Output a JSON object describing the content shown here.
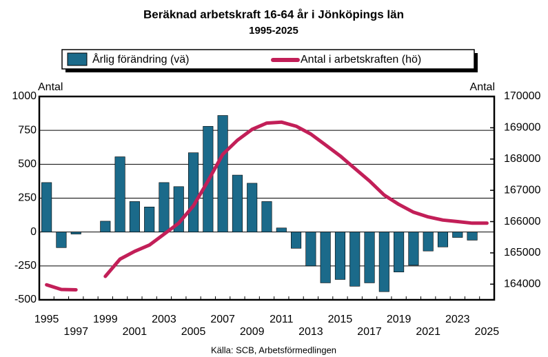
{
  "chart_data": {
    "type": "bar_line",
    "title": "Beräknad arbetskraft 16-64 år i Jönköpings län",
    "subtitle": "1995-2025",
    "y_label": "Antal",
    "y2_label": "Antal",
    "source": "Källa: SCB, Arbetsförmedlingen",
    "legend": "top",
    "categories": [
      "1995",
      null,
      "1997",
      null,
      "1999",
      null,
      "2001",
      null,
      "2003",
      null,
      "2005",
      null,
      "2007",
      null,
      "2009",
      null,
      "2011",
      null,
      "2013",
      null,
      "2015",
      null,
      "2017",
      null,
      "2019",
      null,
      "2021",
      null,
      "2023",
      null,
      "2025"
    ],
    "series": [
      {
        "name": "Årlig förändring (vä)",
        "type": "bar",
        "color": "#1b6a8a",
        "axis": "y",
        "values": [
          365,
          -115,
          -15,
          null,
          80,
          555,
          225,
          185,
          365,
          335,
          585,
          780,
          860,
          420,
          360,
          225,
          30,
          -120,
          -250,
          -375,
          -350,
          -400,
          -375,
          -440,
          -295,
          -245,
          -140,
          -110,
          -40,
          -60,
          null
        ]
      },
      {
        "name": "Antal i arbetskraften (hö)",
        "type": "line",
        "color": "#c21f58",
        "axis": "y2",
        "values": [
          163980,
          163830,
          163820,
          null,
          164250,
          164800,
          165050,
          165250,
          165600,
          165950,
          166500,
          167300,
          168150,
          168600,
          168950,
          169150,
          169180,
          169050,
          168800,
          168450,
          168100,
          167700,
          167300,
          166850,
          166550,
          166300,
          166150,
          166050,
          166000,
          165950,
          165950
        ]
      }
    ],
    "ylim": [
      -500,
      1000
    ],
    "yticks": [
      -500,
      -250,
      0,
      250,
      500,
      750,
      1000
    ],
    "y2lim": [
      163500,
      170000
    ],
    "y2ticks": [
      164000,
      165000,
      166000,
      167000,
      168000,
      169000,
      170000
    ],
    "grid": true
  }
}
